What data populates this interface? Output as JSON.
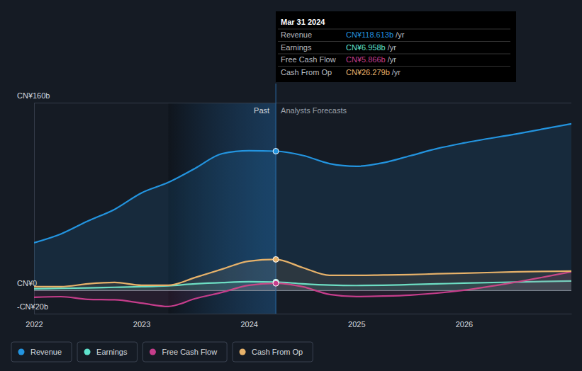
{
  "chart_data": {
    "type": "line",
    "x": [
      2022,
      2022.25,
      2022.5,
      2022.75,
      2023,
      2023.25,
      2023.5,
      2023.75,
      2024,
      2024.25,
      2024.5,
      2024.75,
      2025,
      2025.25,
      2025.5,
      2025.75,
      2026,
      2026.5,
      2027
    ],
    "xlim": [
      2022,
      2027
    ],
    "xticks": [
      2022,
      2023,
      2024,
      2025,
      2026
    ],
    "ylim": [
      -20,
      160
    ],
    "yticks": [
      {
        "value": -20,
        "label": "-CN¥20b"
      },
      {
        "value": 0,
        "label": "CN¥0"
      },
      {
        "value": 160,
        "label": "CN¥160b"
      }
    ],
    "grid": true,
    "legend": "bottom-left",
    "series": [
      {
        "name": "Revenue",
        "color": "#2394df",
        "values": [
          40.5,
          48,
          59,
          69,
          83,
          92,
          104,
          116.5,
          119,
          118.613,
          115,
          108,
          105.7,
          108.7,
          114.7,
          120.8,
          125.6,
          133.5,
          142
        ]
      },
      {
        "name": "Earnings",
        "color": "#5fe3cd",
        "values": [
          1.2,
          1.6,
          2,
          2.5,
          3,
          3.8,
          5.4,
          6.5,
          7.2,
          6.958,
          5.5,
          4.4,
          4,
          4.2,
          4.8,
          5.4,
          6,
          7,
          7.9
        ]
      },
      {
        "name": "Free Cash Flow",
        "color": "#c53d8b",
        "values": [
          -6,
          -5.5,
          -7.8,
          -8.2,
          -11,
          -13.9,
          -7.2,
          -1.8,
          4.2,
          5.866,
          3,
          -3.6,
          -5.4,
          -5,
          -4.2,
          -2.5,
          0,
          7.2,
          15.7
        ]
      },
      {
        "name": "Cash From Op",
        "color": "#e7b26a",
        "values": [
          3,
          3,
          5.4,
          6.6,
          4.2,
          4.2,
          10.9,
          18,
          24.8,
          26.279,
          19.3,
          12.7,
          12.7,
          13,
          13.3,
          14,
          14.5,
          15.7,
          16.3
        ]
      }
    ],
    "annotations": {
      "past_label": "Past",
      "forecast_label": "Analysts Forecasts",
      "forecast_start": 2024.25,
      "highlight_start": 2023.25,
      "tooltip": {
        "title": "Mar 31 2024",
        "rows": [
          {
            "label": "Revenue",
            "value": "CN¥118.613b",
            "unit": "/yr"
          },
          {
            "label": "Earnings",
            "value": "CN¥6.958b",
            "unit": "/yr"
          },
          {
            "label": "Free Cash Flow",
            "value": "CN¥5.866b",
            "unit": "/yr"
          },
          {
            "label": "Cash From Op",
            "value": "CN¥26.279b",
            "unit": "/yr"
          }
        ]
      }
    }
  }
}
